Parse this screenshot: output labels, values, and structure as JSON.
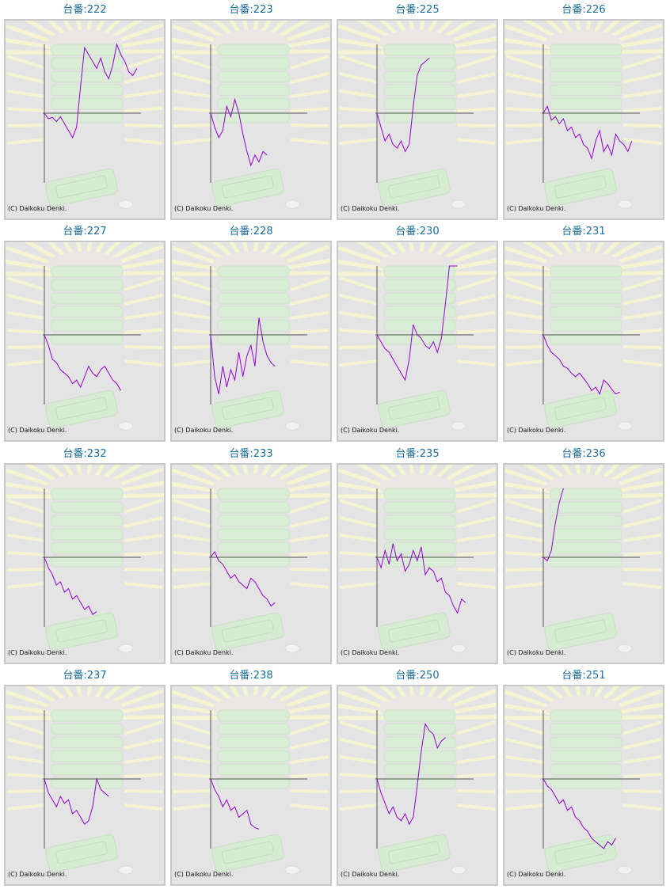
{
  "copyright": "(C) Daikoku Denki.",
  "colors": {
    "line": "#9400d3",
    "axis": "#555555",
    "title": "#1a6e9c",
    "panel_bg": "#e4e4e4",
    "panel_border": "#c9c9c9"
  },
  "chart_data": [
    {
      "type": "line",
      "title": "台番:222",
      "ylim": [
        -100,
        100
      ],
      "x": [
        0,
        5,
        10,
        15,
        20,
        25,
        30,
        35,
        40,
        45,
        50,
        55,
        60,
        65,
        70,
        75,
        80,
        85,
        90,
        95,
        100,
        105,
        110,
        115
      ],
      "values": [
        0,
        -8,
        -6,
        -12,
        -5,
        -15,
        -25,
        -35,
        -20,
        40,
        95,
        85,
        75,
        65,
        80,
        60,
        50,
        70,
        100,
        85,
        75,
        60,
        55,
        65
      ]
    },
    {
      "type": "line",
      "title": "台番:223",
      "ylim": [
        -100,
        100
      ],
      "x": [
        0,
        5,
        10,
        15,
        20,
        25,
        30,
        35,
        40,
        45,
        50,
        55,
        60,
        65,
        70
      ],
      "values": [
        0,
        -20,
        -35,
        -25,
        10,
        -5,
        20,
        0,
        -30,
        -55,
        -75,
        -60,
        -70,
        -55,
        -60
      ]
    },
    {
      "type": "line",
      "title": "台番:225",
      "ylim": [
        -100,
        100
      ],
      "x": [
        0,
        5,
        10,
        15,
        20,
        25,
        30,
        35,
        40,
        45,
        50,
        55,
        60,
        65
      ],
      "values": [
        0,
        -20,
        -40,
        -30,
        -45,
        -50,
        -40,
        -55,
        -45,
        10,
        55,
        70,
        75,
        80
      ]
    },
    {
      "type": "line",
      "title": "台番:226",
      "ylim": [
        -100,
        100
      ],
      "x": [
        0,
        5,
        10,
        15,
        20,
        25,
        30,
        35,
        40,
        45,
        50,
        55,
        60,
        65,
        70,
        75,
        80,
        85,
        90,
        95,
        100,
        105,
        110
      ],
      "values": [
        0,
        10,
        -10,
        -5,
        -15,
        -8,
        -25,
        -20,
        -35,
        -30,
        -45,
        -50,
        -65,
        -40,
        -25,
        -55,
        -45,
        -60,
        -30,
        -40,
        -45,
        -55,
        -40
      ]
    },
    {
      "type": "line",
      "title": "台番:227",
      "ylim": [
        -100,
        100
      ],
      "x": [
        0,
        5,
        10,
        15,
        20,
        25,
        30,
        35,
        40,
        45,
        50,
        55,
        60,
        65,
        70,
        75,
        80,
        85,
        90,
        95
      ],
      "values": [
        0,
        -15,
        -35,
        -40,
        -50,
        -55,
        -60,
        -70,
        -65,
        -75,
        -60,
        -45,
        -55,
        -60,
        -50,
        -45,
        -55,
        -65,
        -70,
        -80
      ]
    },
    {
      "type": "line",
      "title": "台番:228",
      "ylim": [
        -100,
        100
      ],
      "x": [
        0,
        5,
        10,
        15,
        20,
        25,
        30,
        35,
        40,
        45,
        50,
        55,
        60,
        65,
        70,
        75,
        80
      ],
      "values": [
        0,
        -60,
        -85,
        -45,
        -75,
        -50,
        -65,
        -25,
        -60,
        -30,
        -15,
        -45,
        25,
        -10,
        -30,
        -40,
        -45
      ]
    },
    {
      "type": "line",
      "title": "台番:230",
      "ylim": [
        -100,
        100
      ],
      "x": [
        0,
        5,
        10,
        15,
        20,
        25,
        30,
        35,
        40,
        45,
        50,
        55,
        60,
        65,
        70,
        75,
        80,
        85,
        90,
        95,
        100
      ],
      "values": [
        0,
        -10,
        -20,
        -25,
        -35,
        -45,
        -55,
        -65,
        -35,
        15,
        0,
        -5,
        -15,
        -20,
        -10,
        -25,
        -5,
        45,
        100,
        100,
        100
      ]
    },
    {
      "type": "line",
      "title": "台番:231",
      "ylim": [
        -100,
        100
      ],
      "x": [
        0,
        5,
        10,
        15,
        20,
        25,
        30,
        35,
        40,
        45,
        50,
        55,
        60,
        65,
        70,
        75,
        80,
        85,
        90,
        95
      ],
      "values": [
        0,
        -15,
        -25,
        -30,
        -35,
        -45,
        -48,
        -55,
        -60,
        -55,
        -62,
        -70,
        -80,
        -75,
        -85,
        -65,
        -70,
        -78,
        -85,
        -82
      ]
    },
    {
      "type": "line",
      "title": "台番:232",
      "ylim": [
        -100,
        100
      ],
      "x": [
        0,
        5,
        10,
        15,
        20,
        25,
        30,
        35,
        40,
        45,
        50,
        55,
        60,
        65
      ],
      "values": [
        0,
        -15,
        -25,
        -40,
        -35,
        -50,
        -45,
        -60,
        -55,
        -65,
        -75,
        -70,
        -82,
        -78
      ]
    },
    {
      "type": "line",
      "title": "台番:233",
      "ylim": [
        -100,
        100
      ],
      "x": [
        0,
        5,
        10,
        15,
        20,
        25,
        30,
        35,
        40,
        45,
        50,
        55,
        60,
        65,
        70,
        75,
        80
      ],
      "values": [
        0,
        8,
        -5,
        -10,
        -20,
        -30,
        -25,
        -35,
        -40,
        -45,
        -30,
        -35,
        -45,
        -55,
        -60,
        -70,
        -65
      ]
    },
    {
      "type": "line",
      "title": "台番:235",
      "ylim": [
        -100,
        100
      ],
      "x": [
        0,
        5,
        10,
        15,
        20,
        25,
        30,
        35,
        40,
        45,
        50,
        55,
        60,
        65,
        70,
        75,
        80,
        85,
        90,
        95,
        100,
        105,
        110
      ],
      "values": [
        0,
        -15,
        10,
        -10,
        20,
        -5,
        5,
        -20,
        -10,
        10,
        -5,
        15,
        -25,
        -15,
        -20,
        -35,
        -30,
        -50,
        -55,
        -70,
        -80,
        -60,
        -65
      ]
    },
    {
      "type": "line",
      "title": "台番:236",
      "ylim": [
        -100,
        100
      ],
      "x": [
        0,
        5,
        10,
        15,
        20,
        25
      ],
      "values": [
        0,
        -5,
        10,
        50,
        80,
        100
      ]
    },
    {
      "type": "line",
      "title": "台番:237",
      "ylim": [
        -100,
        100
      ],
      "x": [
        0,
        5,
        10,
        15,
        20,
        25,
        30,
        35,
        40,
        45,
        50,
        55,
        60,
        65,
        70,
        75,
        80
      ],
      "values": [
        0,
        -20,
        -30,
        -40,
        -25,
        -35,
        -30,
        -50,
        -45,
        -55,
        -65,
        -60,
        -40,
        0,
        -15,
        -20,
        -25
      ]
    },
    {
      "type": "line",
      "title": "台番:238",
      "ylim": [
        -100,
        100
      ],
      "x": [
        0,
        5,
        10,
        15,
        20,
        25,
        30,
        35,
        40,
        45,
        50,
        55,
        60
      ],
      "values": [
        0,
        -15,
        -25,
        -40,
        -30,
        -45,
        -40,
        -55,
        -50,
        -45,
        -65,
        -70,
        -72
      ]
    },
    {
      "type": "line",
      "title": "台番:250",
      "ylim": [
        -100,
        100
      ],
      "x": [
        0,
        5,
        10,
        15,
        20,
        25,
        30,
        35,
        40,
        45,
        50,
        55,
        60,
        65,
        70,
        75,
        80,
        85
      ],
      "values": [
        0,
        -20,
        -35,
        -50,
        -40,
        -55,
        -60,
        -50,
        -65,
        -55,
        -10,
        40,
        80,
        70,
        65,
        45,
        55,
        60
      ]
    },
    {
      "type": "line",
      "title": "台番:251",
      "ylim": [
        -100,
        100
      ],
      "x": [
        0,
        5,
        10,
        15,
        20,
        25,
        30,
        35,
        40,
        45,
        50,
        55,
        60,
        65,
        70,
        75,
        80,
        85,
        90
      ],
      "values": [
        0,
        -10,
        -15,
        -25,
        -35,
        -30,
        -45,
        -40,
        -55,
        -60,
        -70,
        -75,
        -85,
        -90,
        -95,
        -100,
        -90,
        -95,
        -85
      ]
    }
  ]
}
